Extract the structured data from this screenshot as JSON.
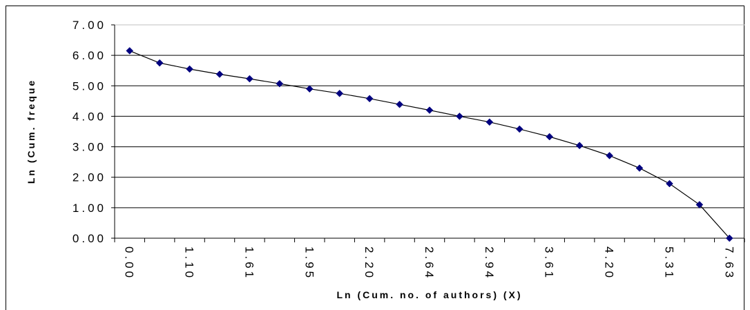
{
  "chart_data": {
    "type": "line",
    "title": "",
    "xlabel": "Ln (Cum. no. of authors) (X)",
    "ylabel": "Ln (Cum. freque",
    "ylim": [
      0,
      7
    ],
    "y_ticks": [
      "0.00",
      "1.00",
      "2.00",
      "3.00",
      "4.00",
      "5.00",
      "6.00",
      "7.00"
    ],
    "categories": [
      "0.00",
      "",
      "1.10",
      "",
      "1.61",
      "",
      "1.95",
      "",
      "2.20",
      "",
      "2.64",
      "",
      "2.94",
      "",
      "3.61",
      "",
      "4.20",
      "",
      "5.31",
      "",
      "7.63"
    ],
    "series": [
      {
        "color": "#00007f",
        "values": [
          6.15,
          5.75,
          5.55,
          5.38,
          5.23,
          5.07,
          4.9,
          4.75,
          4.58,
          4.39,
          4.2,
          4.0,
          3.81,
          3.58,
          3.33,
          3.04,
          2.71,
          2.3,
          1.79,
          1.1,
          0.0
        ]
      }
    ],
    "grid": true,
    "legend": "none"
  }
}
